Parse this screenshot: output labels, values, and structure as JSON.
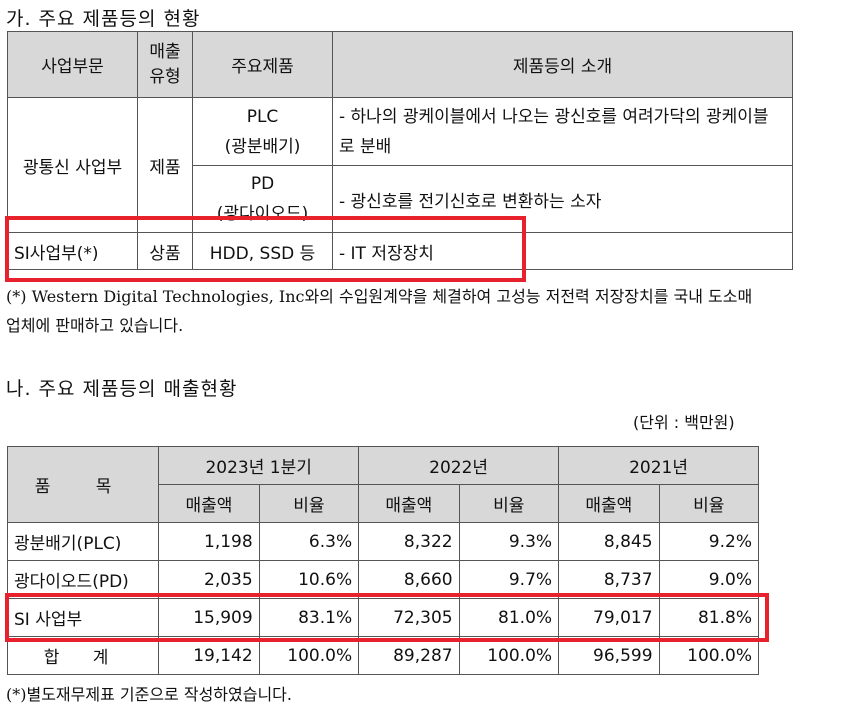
{
  "section_a": {
    "title": "가. 주요 제품등의 현황",
    "headers": [
      "사업부문",
      "매출\n유형",
      "주요제품",
      "제품등의 소개"
    ],
    "rows": {
      "optical": {
        "division": "광통신 사업부",
        "type": "제품",
        "product1": "PLC\n(광분배기)",
        "desc1": "- 하나의 광케이블에서 나오는 광신호를 여려가닥의 광케이블로 분배",
        "product2": "PD\n(광다이오드)",
        "desc2": "- 광신호를 전기신호로 변환하는 소자"
      },
      "si": {
        "division": "SI사업부(*)",
        "type": "상품",
        "product": "HDD, SSD 등",
        "desc": "- IT 저장장치"
      }
    },
    "note": "(*) Western Digital Technologies, Inc와의 수입원계약을 체결하여 고성능 저전력 저장장치를 국내 도소매업체에 판매하고 있습니다."
  },
  "section_b": {
    "title": "나. 주요 제품등의 매출현황",
    "unit": "(단위 : 백만원)",
    "item_header": "품 목",
    "periods": [
      "2023년 1분기",
      "2022년",
      "2021년"
    ],
    "subheaders": [
      "매출액",
      "비율"
    ],
    "rows": [
      {
        "name": "광분배기(PLC)",
        "values": [
          "1,198",
          "6.3%",
          "8,322",
          "9.3%",
          "8,845",
          "9.2%"
        ]
      },
      {
        "name": "광다이오드(PD)",
        "values": [
          "2,035",
          "10.6%",
          "8,660",
          "9.7%",
          "8,737",
          "9.0%"
        ]
      },
      {
        "name": "SI 사업부",
        "values": [
          "15,909",
          "83.1%",
          "72,305",
          "81.0%",
          "79,017",
          "81.8%"
        ]
      },
      {
        "name": "합 계",
        "values": [
          "19,142",
          "100.0%",
          "89,287",
          "100.0%",
          "96,599",
          "100.0%"
        ]
      }
    ],
    "note": "(*)별도재무제표 기준으로 작성하였습니다."
  },
  "colors": {
    "header_bg": "#d8d8d8",
    "highlight": "#e8222d",
    "border": "#555555"
  }
}
